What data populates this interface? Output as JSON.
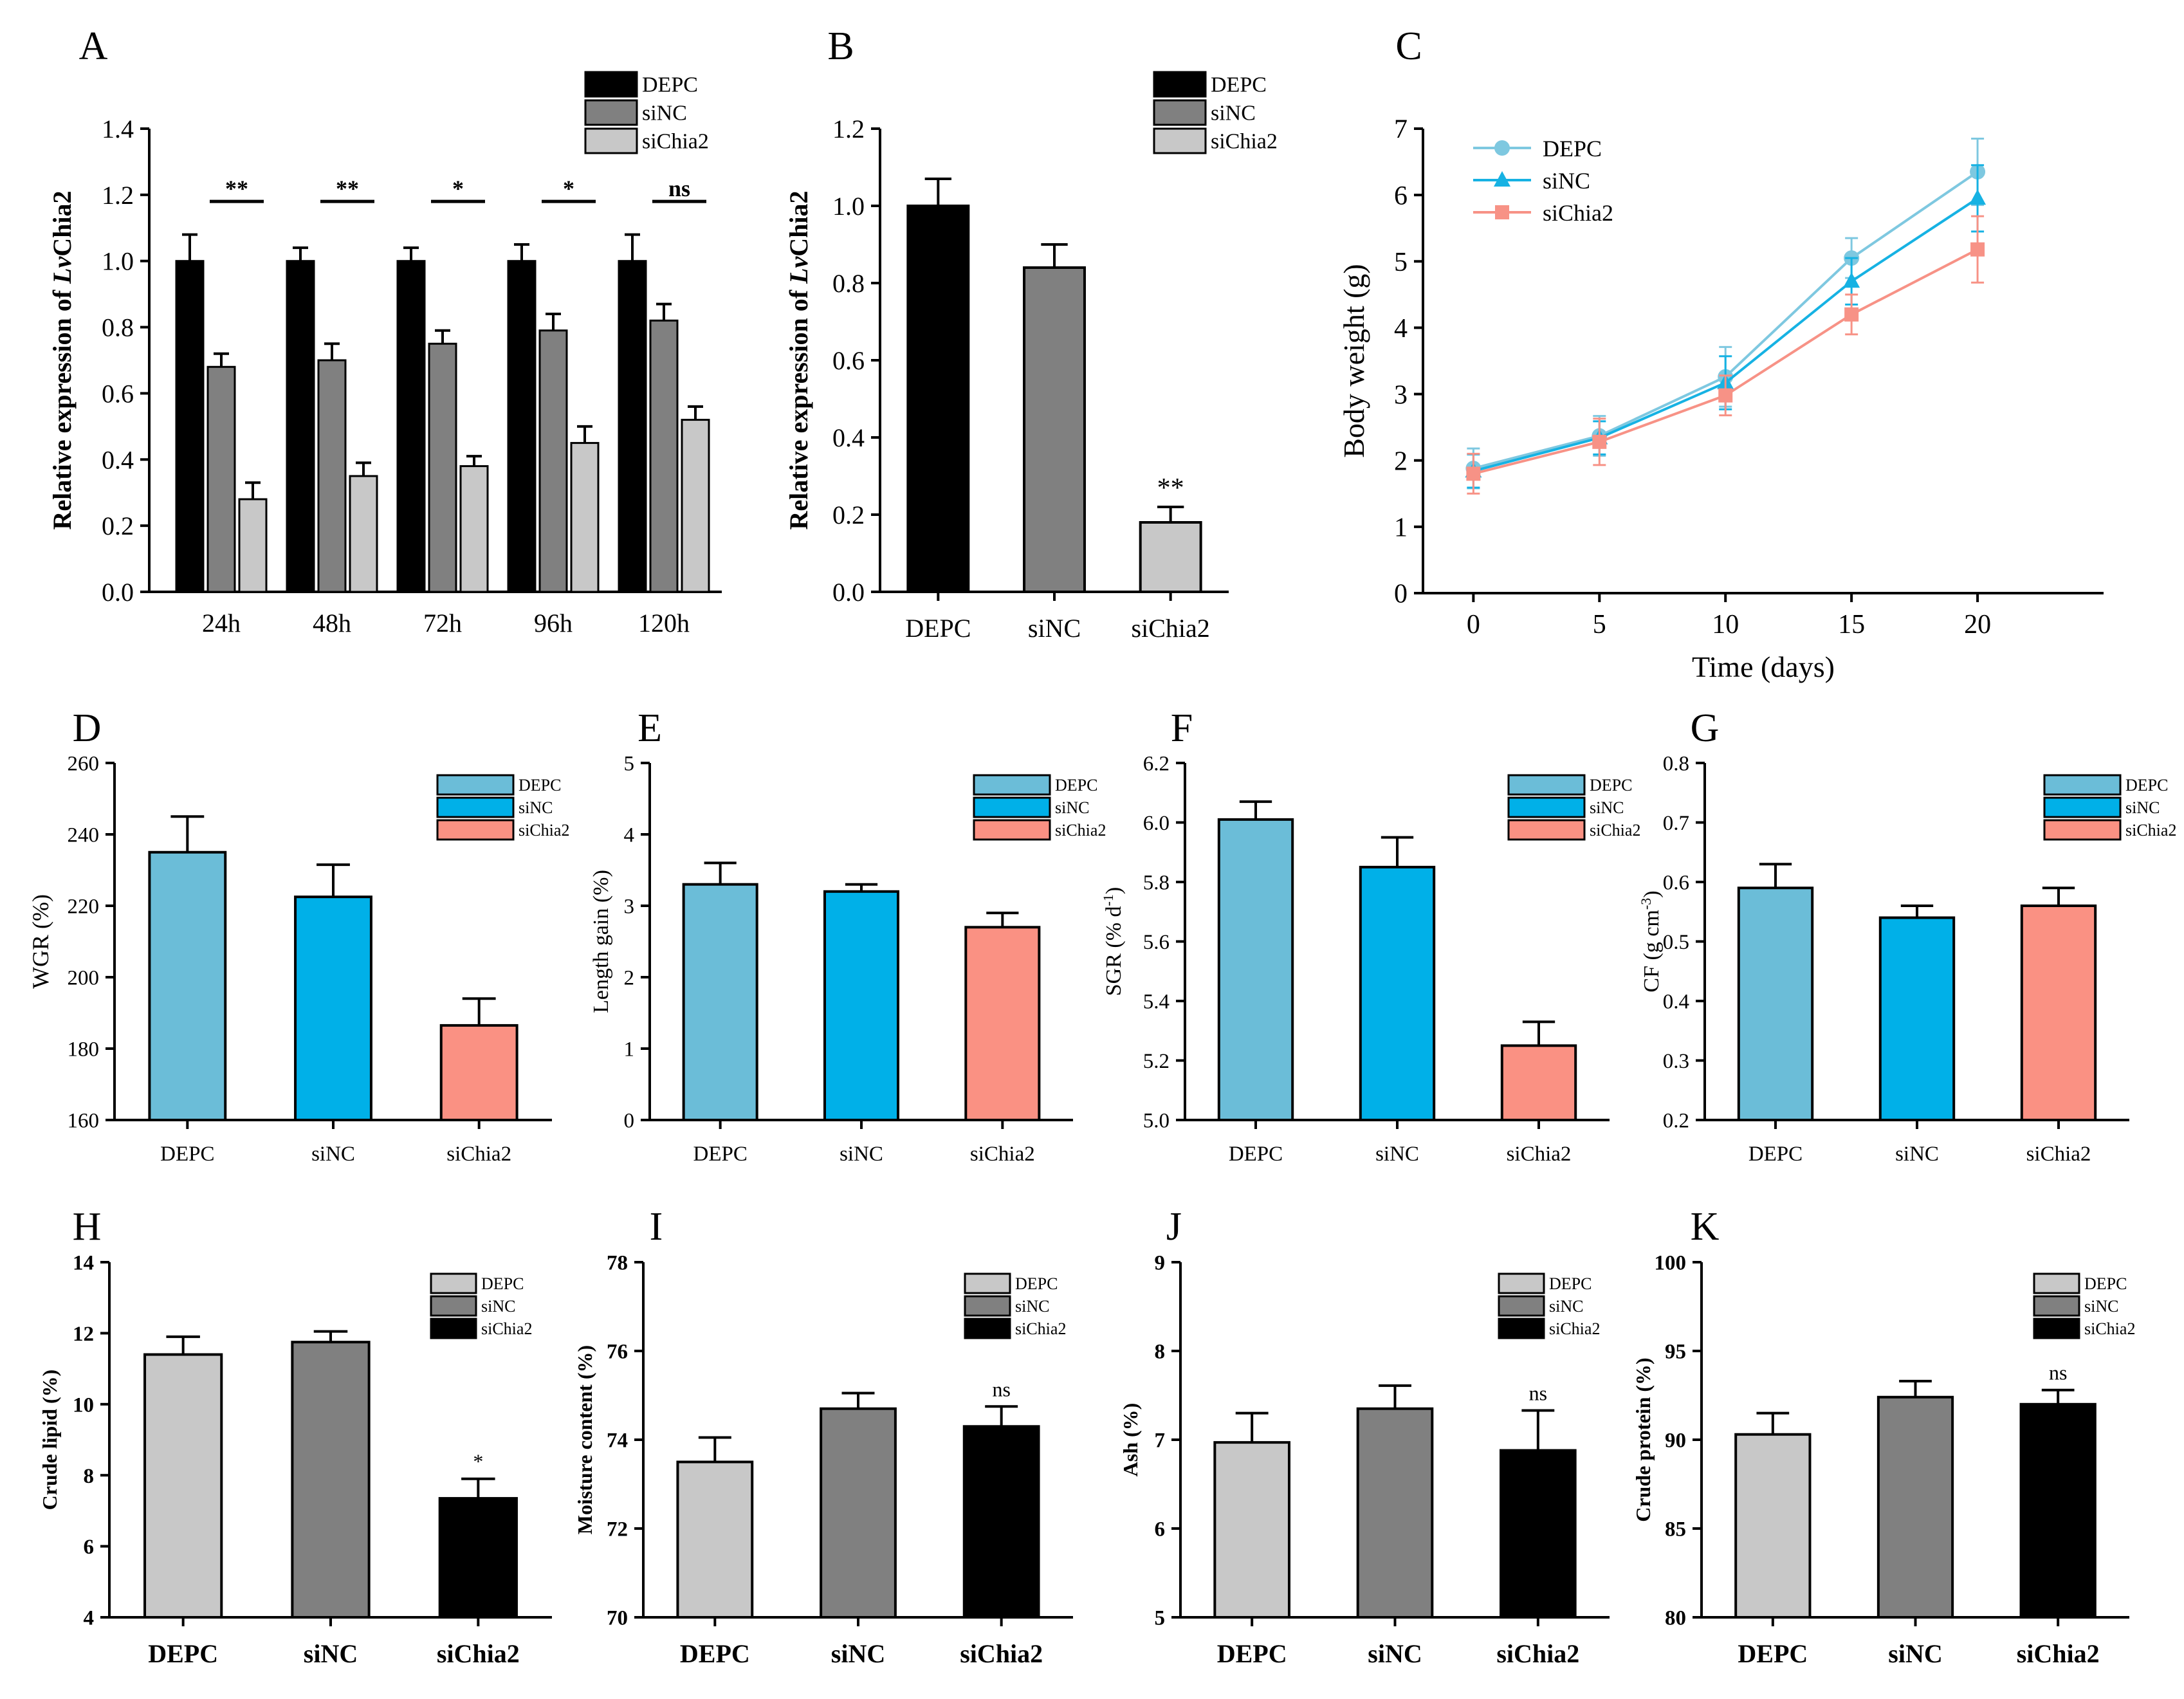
{
  "colors": {
    "black": "#000000",
    "dark_gray": "#808080",
    "light_gray": "#c8c8c8",
    "light_blue": "#6bbdd8",
    "cyan": "#00b0e8",
    "salmon": "#fa9183",
    "line_depc": "#7ec8e0",
    "line_sinc": "#16b2e3",
    "line_sichia2": "#f79286"
  },
  "chart_data": [
    {
      "id": "A",
      "panel_label": "A",
      "type": "bar",
      "categories": [
        "24h",
        "48h",
        "72h",
        "96h",
        "120h"
      ],
      "series": [
        {
          "name": "DEPC",
          "color": "black",
          "values": [
            1.0,
            1.0,
            1.0,
            1.0,
            1.0
          ],
          "errors": [
            0.08,
            0.04,
            0.04,
            0.05,
            0.08
          ]
        },
        {
          "name": "siNC",
          "color": "dark_gray",
          "values": [
            0.68,
            0.7,
            0.75,
            0.79,
            0.82
          ],
          "errors": [
            0.04,
            0.05,
            0.04,
            0.05,
            0.05
          ]
        },
        {
          "name": "siChia2",
          "color": "light_gray",
          "values": [
            0.28,
            0.35,
            0.38,
            0.45,
            0.52
          ],
          "errors": [
            0.05,
            0.04,
            0.03,
            0.05,
            0.04
          ]
        }
      ],
      "significance": [
        "**",
        "**",
        "*",
        "*",
        "ns"
      ],
      "ylabel_parts": [
        "Relative expression of ",
        "Lv",
        "Chia2"
      ],
      "ylim": [
        0,
        1.4
      ],
      "yticks": [
        0.0,
        0.2,
        0.4,
        0.6,
        0.8,
        1.0,
        1.2,
        1.4
      ],
      "ytick_labels": [
        "0.0",
        "0.2",
        "0.4",
        "0.6",
        "0.8",
        "1.0",
        "1.2",
        "1.4"
      ],
      "legend": "top-right"
    },
    {
      "id": "B",
      "panel_label": "B",
      "type": "bar",
      "categories": [
        "DEPC",
        "siNC",
        "siChia2"
      ],
      "values": [
        1.0,
        0.84,
        0.18
      ],
      "errors": [
        0.07,
        0.06,
        0.04
      ],
      "colors": [
        "black",
        "dark_gray",
        "light_gray"
      ],
      "significance": [
        "",
        "",
        "**"
      ],
      "legend_entries": [
        "DEPC",
        "siNC",
        "siChia2"
      ],
      "ylabel_parts": [
        "Relative expression of ",
        "Lv",
        "Chia2"
      ],
      "ylim": [
        0,
        1.2
      ],
      "yticks": [
        0.0,
        0.2,
        0.4,
        0.6,
        0.8,
        1.0,
        1.2
      ],
      "ytick_labels": [
        "0.0",
        "0.2",
        "0.4",
        "0.6",
        "0.8",
        "1.0",
        "1.2"
      ],
      "legend": "top-right"
    },
    {
      "id": "C",
      "panel_label": "C",
      "type": "line",
      "x": [
        0,
        5,
        10,
        15,
        20
      ],
      "series": [
        {
          "name": "DEPC",
          "color": "line_depc",
          "marker": "circle",
          "values": [
            1.88,
            2.37,
            3.26,
            5.05,
            6.35
          ],
          "errors": [
            0.3,
            0.3,
            0.45,
            0.3,
            0.5
          ]
        },
        {
          "name": "siNC",
          "color": "line_sinc",
          "marker": "triangle",
          "values": [
            1.84,
            2.34,
            3.17,
            4.7,
            5.95
          ],
          "errors": [
            0.25,
            0.25,
            0.4,
            0.35,
            0.5
          ]
        },
        {
          "name": "siChia2",
          "color": "line_sichia2",
          "marker": "square",
          "values": [
            1.8,
            2.28,
            2.98,
            4.2,
            5.18
          ],
          "errors": [
            0.3,
            0.35,
            0.3,
            0.3,
            0.5
          ]
        }
      ],
      "xlabel": "Time (days)",
      "ylabel": "Body weight (g)",
      "xlim": [
        -2,
        25
      ],
      "ylim": [
        0,
        7
      ],
      "xticks": [
        0,
        5,
        10,
        15,
        20
      ],
      "xtick_labels": [
        "0",
        "5",
        "10",
        "15",
        "20"
      ],
      "yticks": [
        0,
        1,
        2,
        3,
        4,
        5,
        6,
        7
      ],
      "ytick_labels": [
        "0",
        "1",
        "2",
        "3",
        "4",
        "5",
        "6",
        "7"
      ],
      "legend": "top-left"
    },
    {
      "id": "D",
      "panel_label": "D",
      "type": "bar",
      "categories": [
        "DEPC",
        "siNC",
        "siChia2"
      ],
      "values": [
        235,
        222.5,
        186.5
      ],
      "errors": [
        10,
        9,
        7.5
      ],
      "colors": [
        "light_blue",
        "cyan",
        "salmon"
      ],
      "significance": [
        "",
        "",
        ""
      ],
      "legend_entries": [
        "DEPC",
        "siNC",
        "siChia2"
      ],
      "ylabel_parts": [
        "WGR (%)"
      ],
      "ylim": [
        160,
        260
      ],
      "yticks": [
        160,
        180,
        200,
        220,
        240,
        260
      ],
      "ytick_labels": [
        "160",
        "180",
        "200",
        "220",
        "240",
        "260"
      ],
      "legend": "top-right"
    },
    {
      "id": "E",
      "panel_label": "E",
      "type": "bar",
      "categories": [
        "DEPC",
        "siNC",
        "siChia2"
      ],
      "values": [
        3.3,
        3.2,
        2.7
      ],
      "errors": [
        0.3,
        0.1,
        0.2
      ],
      "colors": [
        "light_blue",
        "cyan",
        "salmon"
      ],
      "significance": [
        "",
        "",
        ""
      ],
      "legend_entries": [
        "DEPC",
        "siNC",
        "siChia2"
      ],
      "ylabel_parts": [
        "Length gain (%)"
      ],
      "ylim": [
        0,
        5
      ],
      "yticks": [
        0,
        1,
        2,
        3,
        4,
        5
      ],
      "ytick_labels": [
        "0",
        "1",
        "2",
        "3",
        "4",
        "5"
      ],
      "legend": "top-right"
    },
    {
      "id": "F",
      "panel_label": "F",
      "type": "bar",
      "categories": [
        "DEPC",
        "siNC",
        "siChia2"
      ],
      "values": [
        6.01,
        5.85,
        5.25
      ],
      "errors": [
        0.06,
        0.1,
        0.08
      ],
      "colors": [
        "light_blue",
        "cyan",
        "salmon"
      ],
      "significance": [
        "",
        "",
        ""
      ],
      "legend_entries": [
        "DEPC",
        "siNC",
        "siChia2"
      ],
      "ylabel_parts": [
        "SGR (% d",
        "-1",
        ")"
      ],
      "ylim": [
        5.0,
        6.2
      ],
      "yticks": [
        5.0,
        5.2,
        5.4,
        5.6,
        5.8,
        6.0,
        6.2
      ],
      "ytick_labels": [
        "5.0",
        "5.2",
        "5.4",
        "5.6",
        "5.8",
        "6.0",
        "6.2"
      ],
      "legend": "top-right"
    },
    {
      "id": "G",
      "panel_label": "G",
      "type": "bar",
      "categories": [
        "DEPC",
        "siNC",
        "siChia2"
      ],
      "values": [
        0.59,
        0.54,
        0.56
      ],
      "errors": [
        0.04,
        0.02,
        0.03
      ],
      "colors": [
        "light_blue",
        "cyan",
        "salmon"
      ],
      "significance": [
        "",
        "",
        ""
      ],
      "legend_entries": [
        "DEPC",
        "siNC",
        "siChia2"
      ],
      "ylabel_parts": [
        "CF (g cm",
        "-3",
        ")"
      ],
      "ylim": [
        0.2,
        0.8
      ],
      "yticks": [
        0.2,
        0.3,
        0.4,
        0.5,
        0.6,
        0.7,
        0.8
      ],
      "ytick_labels": [
        "0.2",
        "0.3",
        "0.4",
        "0.5",
        "0.6",
        "0.7",
        "0.8"
      ],
      "legend": "top-right"
    },
    {
      "id": "H",
      "panel_label": "H",
      "type": "bar",
      "categories": [
        "DEPC",
        "siNC",
        "siChia2"
      ],
      "values": [
        11.4,
        11.75,
        7.35
      ],
      "errors": [
        0.5,
        0.3,
        0.55
      ],
      "colors": [
        "light_gray",
        "dark_gray",
        "black"
      ],
      "significance": [
        "",
        "",
        "*"
      ],
      "legend_entries": [
        "DEPC",
        "siNC",
        "siChia2"
      ],
      "ylabel_parts": [
        "Crude lipid (%)"
      ],
      "ylim": [
        4,
        14
      ],
      "yticks": [
        4,
        6,
        8,
        10,
        12,
        14
      ],
      "ytick_labels": [
        "4",
        "6",
        "8",
        "10",
        "12",
        "14"
      ],
      "legend": "top-right"
    },
    {
      "id": "I",
      "panel_label": "I",
      "type": "bar",
      "categories": [
        "DEPC",
        "siNC",
        "siChia2"
      ],
      "values": [
        73.5,
        74.7,
        74.3
      ],
      "errors": [
        0.55,
        0.35,
        0.45
      ],
      "colors": [
        "light_gray",
        "dark_gray",
        "black"
      ],
      "significance": [
        "",
        "",
        "ns"
      ],
      "legend_entries": [
        "DEPC",
        "siNC",
        "siChia2"
      ],
      "ylabel_parts": [
        "Moisture content (%)"
      ],
      "ylim": [
        70,
        78
      ],
      "yticks": [
        70,
        72,
        74,
        76,
        78
      ],
      "ytick_labels": [
        "70",
        "72",
        "74",
        "76",
        "78"
      ],
      "legend": "top-right"
    },
    {
      "id": "J",
      "panel_label": "J",
      "type": "bar",
      "categories": [
        "DEPC",
        "siNC",
        "siChia2"
      ],
      "values": [
        6.97,
        7.35,
        6.88
      ],
      "errors": [
        0.33,
        0.26,
        0.45
      ],
      "colors": [
        "light_gray",
        "dark_gray",
        "black"
      ],
      "significance": [
        "",
        "",
        "ns"
      ],
      "legend_entries": [
        "DEPC",
        "siNC",
        "siChia2"
      ],
      "ylabel_parts": [
        "Ash (%)"
      ],
      "ylim": [
        5,
        9
      ],
      "yticks": [
        5,
        6,
        7,
        8,
        9
      ],
      "ytick_labels": [
        "5",
        "6",
        "7",
        "8",
        "9"
      ],
      "legend": "top-right"
    },
    {
      "id": "K",
      "panel_label": "K",
      "type": "bar",
      "categories": [
        "DEPC",
        "siNC",
        "siChia2"
      ],
      "values": [
        90.3,
        92.4,
        92.0
      ],
      "errors": [
        1.2,
        0.9,
        0.8
      ],
      "colors": [
        "light_gray",
        "dark_gray",
        "black"
      ],
      "significance": [
        "",
        "",
        "ns"
      ],
      "legend_entries": [
        "DEPC",
        "siNC",
        "siChia2"
      ],
      "ylabel_parts": [
        "Crude protein (%)"
      ],
      "ylim": [
        80,
        100
      ],
      "yticks": [
        80,
        85,
        90,
        95,
        100
      ],
      "ytick_labels": [
        "80",
        "85",
        "90",
        "95",
        "100"
      ],
      "legend": "top-right"
    }
  ]
}
